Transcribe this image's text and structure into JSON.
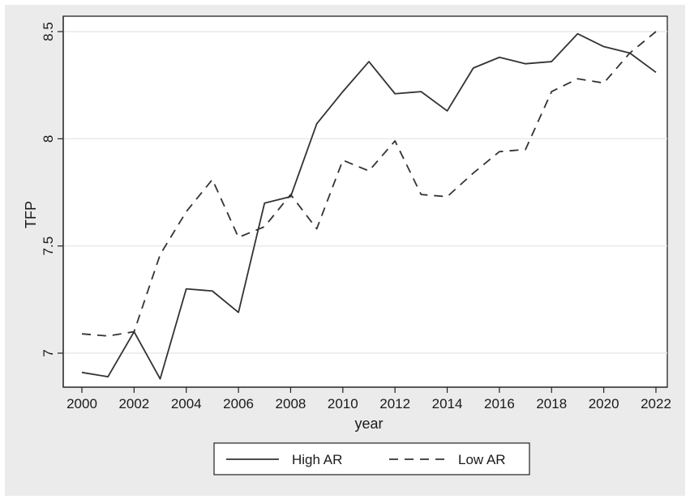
{
  "chart_data": {
    "type": "line",
    "title": "",
    "xlabel": "year",
    "ylabel": "TFP",
    "xlim": [
      2000,
      2022
    ],
    "ylim": [
      6.84,
      8.53
    ],
    "x_ticks": [
      2000,
      2002,
      2004,
      2006,
      2008,
      2010,
      2012,
      2014,
      2016,
      2018,
      2020,
      2022
    ],
    "x_tick_labels": [
      "2000",
      "2002",
      "2004",
      "2006",
      "2008",
      "2010",
      "2012",
      "2014",
      "2016",
      "2018",
      "2020",
      "2022"
    ],
    "y_ticks": [
      7,
      7.5,
      8,
      8.5
    ],
    "y_tick_labels": [
      "7",
      "7.5",
      "8",
      "8.5"
    ],
    "grid": "horizontal",
    "legend_position": "bottom",
    "x": [
      2000,
      2001,
      2002,
      2003,
      2004,
      2005,
      2006,
      2007,
      2008,
      2009,
      2010,
      2011,
      2012,
      2013,
      2014,
      2015,
      2016,
      2017,
      2018,
      2019,
      2020,
      2021,
      2022
    ],
    "series": [
      {
        "name": "High AR",
        "style": "solid",
        "color": "#333333",
        "values": [
          6.91,
          6.89,
          7.1,
          6.88,
          7.3,
          7.29,
          7.19,
          7.7,
          7.73,
          8.07,
          8.22,
          8.36,
          8.21,
          8.22,
          8.13,
          8.33,
          8.38,
          8.35,
          8.36,
          8.49,
          8.43,
          8.4,
          8.31
        ]
      },
      {
        "name": "Low AR",
        "style": "dashed",
        "color": "#333333",
        "values": [
          7.09,
          7.08,
          7.1,
          7.46,
          7.66,
          7.81,
          7.54,
          7.59,
          7.74,
          7.58,
          7.9,
          7.85,
          7.99,
          7.74,
          7.73,
          7.84,
          7.94,
          7.95,
          8.22,
          8.28,
          8.26,
          8.4,
          8.5
        ]
      }
    ]
  },
  "colors": {
    "frame_background": "#ebebeb",
    "plot_background": "#ffffff",
    "gridline": "#e9e9e9",
    "line": "#333333"
  }
}
